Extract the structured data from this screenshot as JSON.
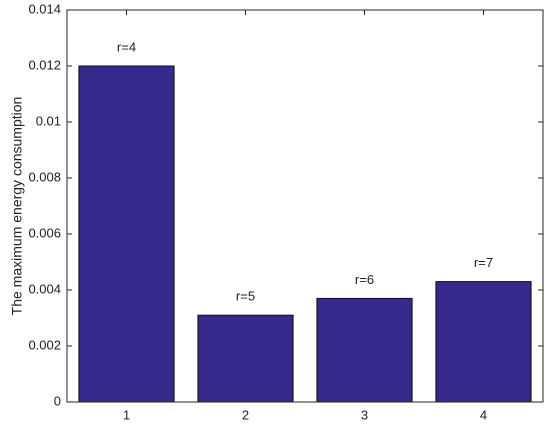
{
  "chart_data": {
    "type": "bar",
    "y_label": "The maximum energy consumption",
    "categories": [
      "1",
      "2",
      "3",
      "4"
    ],
    "values": [
      0.012,
      0.0031,
      0.0037,
      0.0043
    ],
    "bar_labels": [
      "r=4",
      "r=5",
      "r=6",
      "r=7"
    ],
    "color": "#35298c",
    "ylim": [
      0,
      0.014
    ],
    "yticks": [
      0,
      0.002,
      0.004,
      0.006,
      0.008,
      0.01,
      0.012,
      0.014
    ],
    "grid": false
  }
}
